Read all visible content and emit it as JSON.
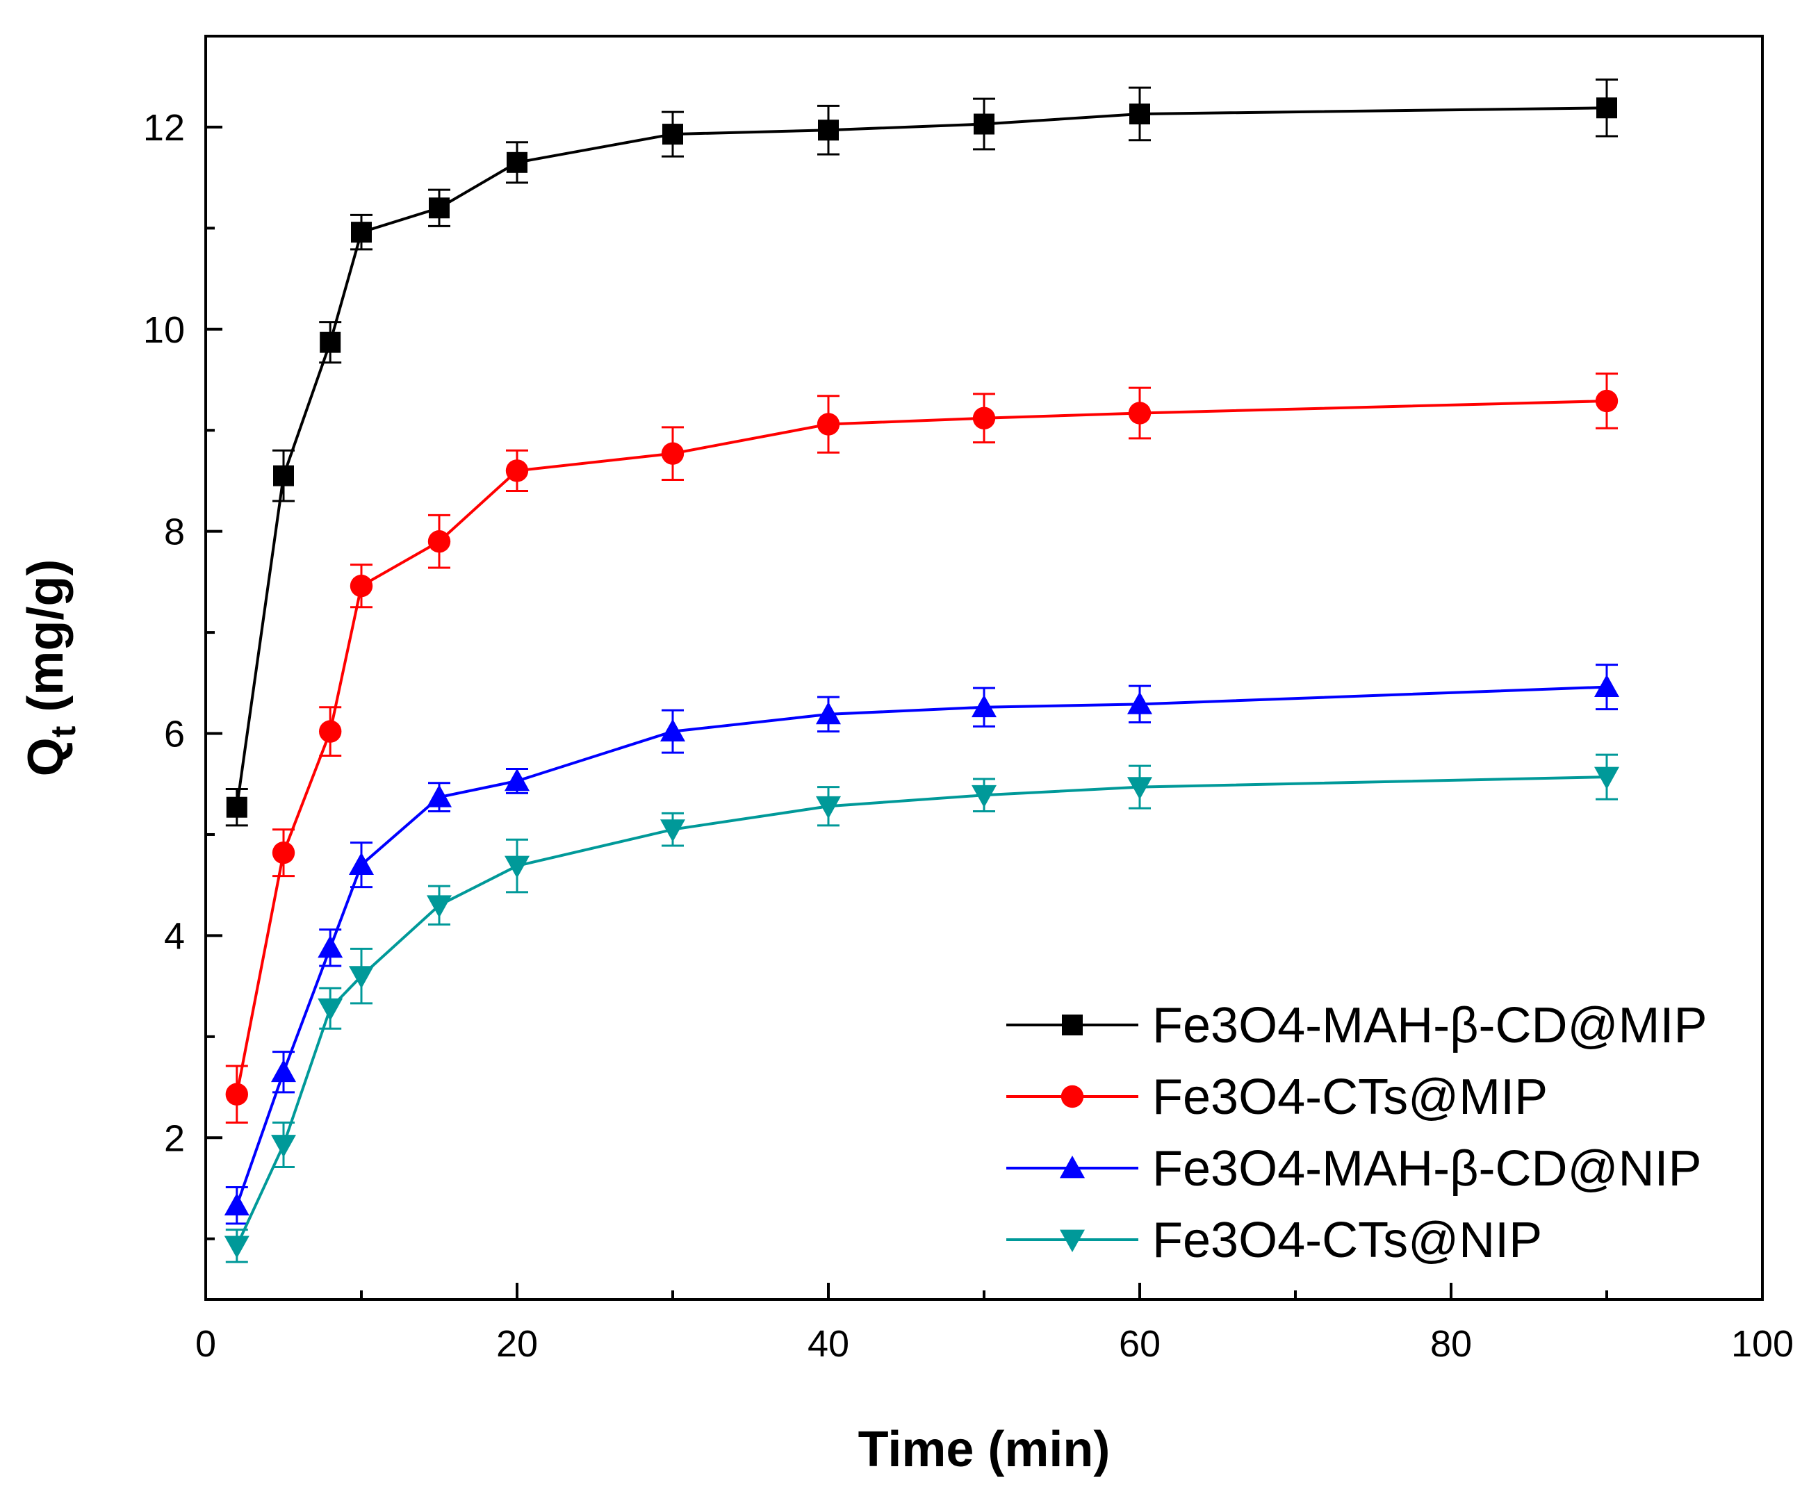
{
  "chart_data": {
    "type": "line",
    "title": "",
    "xlabel": "Time (min)",
    "ylabel_main": "Q",
    "ylabel_sub": "t",
    "ylabel_unit": " (mg/g)",
    "xlim": [
      0,
      100
    ],
    "ylim": [
      0.4,
      12.9
    ],
    "xticks": [
      0,
      20,
      40,
      60,
      80,
      100
    ],
    "xtick_labels": [
      "0",
      "20",
      "40",
      "60",
      "80",
      "100"
    ],
    "yticks": [
      2,
      4,
      6,
      8,
      10,
      12
    ],
    "ytick_labels": [
      "2",
      "4",
      "6",
      "8",
      "10",
      "12"
    ],
    "grid": false,
    "legend_position": "bottom-right",
    "x": [
      2,
      5,
      8,
      10,
      15,
      20,
      30,
      40,
      50,
      60,
      90
    ],
    "series": [
      {
        "name": "Fe3O4-MAH-β-CD@MIP",
        "color": "#000000",
        "marker": "square",
        "values": [
          5.27,
          8.55,
          9.87,
          10.96,
          11.2,
          11.65,
          11.93,
          11.97,
          12.03,
          12.13,
          12.19
        ],
        "errors": [
          0.18,
          0.25,
          0.2,
          0.17,
          0.18,
          0.2,
          0.22,
          0.24,
          0.25,
          0.26,
          0.28
        ]
      },
      {
        "name": "Fe3O4-CTs@MIP",
        "color": "#ff0000",
        "marker": "circle",
        "values": [
          2.43,
          4.82,
          6.02,
          7.46,
          7.9,
          8.6,
          8.77,
          9.06,
          9.12,
          9.17,
          9.29
        ],
        "errors": [
          0.28,
          0.23,
          0.24,
          0.21,
          0.26,
          0.2,
          0.26,
          0.28,
          0.24,
          0.25,
          0.27
        ]
      },
      {
        "name": "Fe3O4-MAH-β-CD@NIP",
        "color": "#0000ff",
        "marker": "triangle-up",
        "values": [
          1.33,
          2.65,
          3.88,
          4.7,
          5.37,
          5.53,
          6.02,
          6.19,
          6.26,
          6.29,
          6.46
        ],
        "errors": [
          0.18,
          0.2,
          0.18,
          0.22,
          0.14,
          0.12,
          0.21,
          0.17,
          0.19,
          0.18,
          0.22
        ]
      },
      {
        "name": "Fe3O4-CTs@NIP",
        "color": "#009999",
        "marker": "triangle-down",
        "values": [
          0.93,
          1.93,
          3.28,
          3.6,
          4.3,
          4.69,
          5.05,
          5.28,
          5.39,
          5.47,
          5.57
        ],
        "errors": [
          0.16,
          0.22,
          0.2,
          0.27,
          0.19,
          0.26,
          0.16,
          0.19,
          0.16,
          0.21,
          0.22
        ]
      }
    ]
  }
}
